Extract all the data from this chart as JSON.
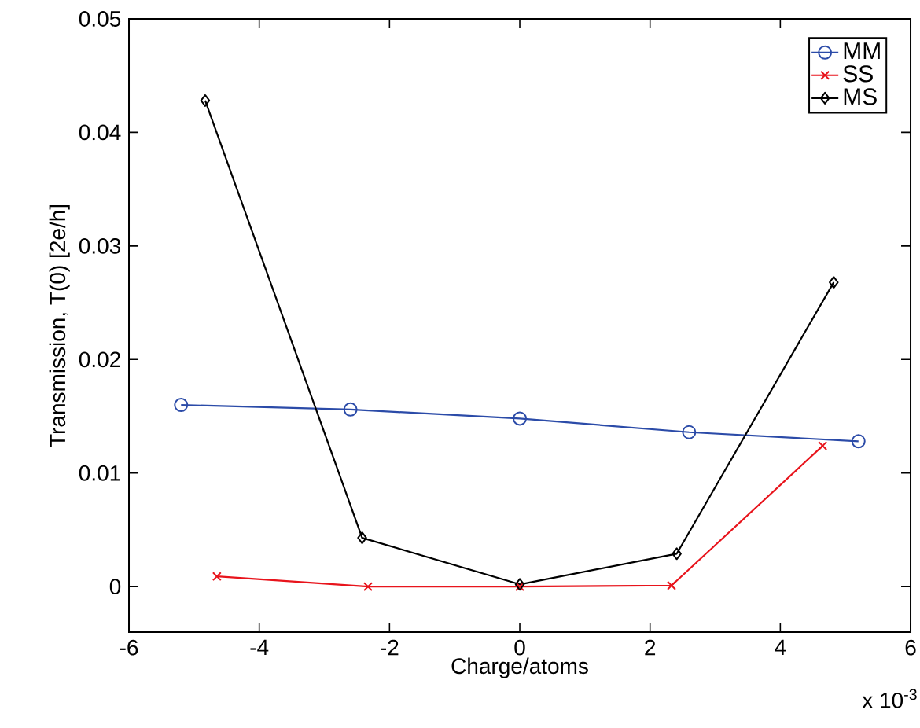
{
  "chart_data": {
    "type": "line",
    "xlabel": "Charge/atoms",
    "ylabel": "Transmission, T(0) [2e/h]",
    "annotations": [
      "x 10$^{-3}$"
    ],
    "xlim": [
      -6,
      6
    ],
    "xticks": [
      -6,
      -4,
      -2,
      0,
      2,
      4,
      6
    ],
    "ylim": [
      -0.004,
      0.05
    ],
    "yticks": [
      0,
      0.01,
      0.02,
      0.03,
      0.04,
      0.05
    ],
    "grid": false,
    "legend": "top right",
    "line_style": "solid",
    "series": [
      {
        "name": "MM",
        "color": "#2b4ba8",
        "marker": "circle",
        "x": [
          -5.2,
          -2.6,
          0,
          2.6,
          5.2
        ],
        "values": [
          0.016,
          0.0156,
          0.0148,
          0.0136,
          0.0128
        ]
      },
      {
        "name": "SS",
        "color": "#e8141c",
        "marker": "cross",
        "x": [
          -4.65,
          -2.33,
          0,
          2.33,
          4.65
        ],
        "values": [
          0.0009,
          0.0,
          0.0,
          0.0001,
          0.0124
        ]
      },
      {
        "name": "MS",
        "color": "#000000",
        "marker": "diamond",
        "x": [
          -4.83,
          -2.42,
          0,
          2.41,
          4.82
        ],
        "values": [
          0.0428,
          0.0043,
          0.0002,
          0.0029,
          0.0268
        ]
      }
    ]
  }
}
